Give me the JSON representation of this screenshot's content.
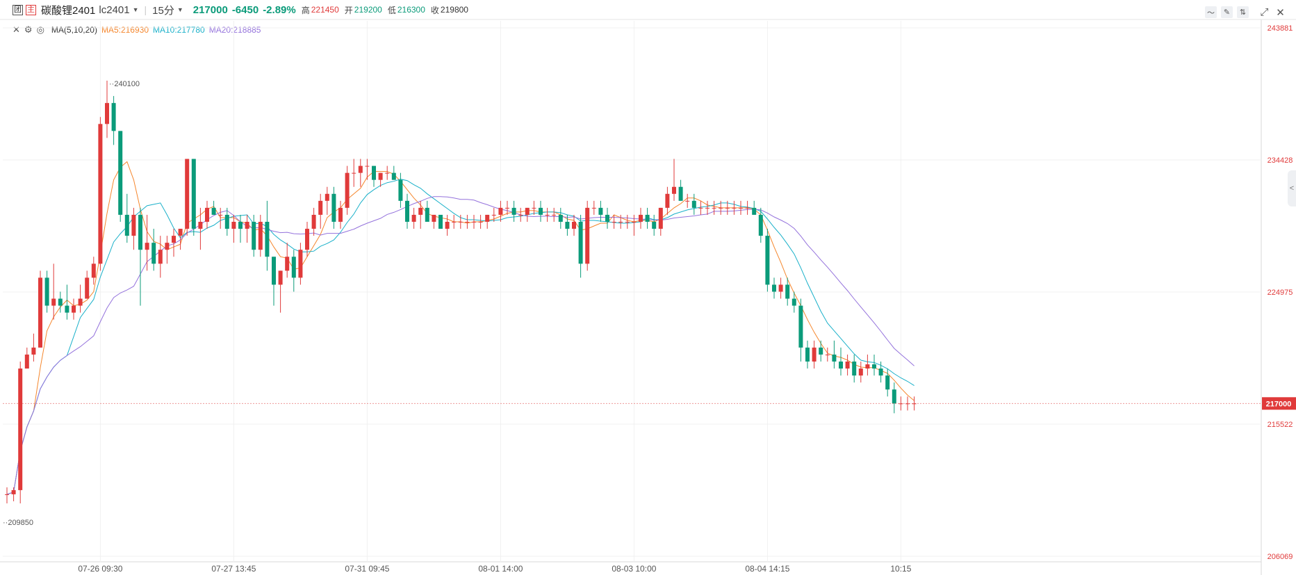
{
  "header": {
    "icon_left": "团",
    "icon_right": "主",
    "symbol_name": "碳酸锂2401",
    "symbol_code": "lc2401",
    "interval": "15分",
    "price": "217000",
    "change": "-6450",
    "change_pct": "-2.89%",
    "high_label": "高",
    "high": "221450",
    "open_label": "开",
    "open": "219200",
    "low_label": "低",
    "low": "216300",
    "close_label": "收",
    "close": "219800"
  },
  "legend": {
    "name": "MA(5,10,20)",
    "ma5": "MA5:216930",
    "ma10": "MA10:217780",
    "ma20": "MA20:218885"
  },
  "colors": {
    "up": "#e03a3a",
    "down": "#0b9b7a",
    "ma5": "#f5862c",
    "ma10": "#19b0c9",
    "ma20": "#9472dc"
  },
  "chart_data": {
    "type": "candlestick",
    "interval": "15分",
    "y_ticks": [
      206069,
      215522,
      224975,
      234428,
      243881
    ],
    "ylim": [
      206069,
      243881
    ],
    "x_ticks": [
      "07-26 09:30",
      "07-27 13:45",
      "07-31 09:45",
      "08-01 14:00",
      "08-03 10:00",
      "08-04 14:15",
      "10:15"
    ],
    "x_tick_index": [
      14,
      34,
      54,
      74,
      94,
      114,
      134
    ],
    "last_price": 217000,
    "max_label": "240100",
    "min_label": "209850",
    "candles": [
      [
        210500,
        211000,
        209850,
        210500
      ],
      [
        210500,
        211000,
        210000,
        210800
      ],
      [
        210800,
        220000,
        209850,
        219500
      ],
      [
        219500,
        221000,
        219500,
        220500
      ],
      [
        220500,
        222000,
        220000,
        221000
      ],
      [
        221000,
        226500,
        221000,
        226000
      ],
      [
        226000,
        226500,
        223500,
        224000
      ],
      [
        224000,
        227000,
        223000,
        224500
      ],
      [
        224500,
        225000,
        223500,
        224000
      ],
      [
        224000,
        225500,
        223000,
        223500
      ],
      [
        223500,
        224500,
        223000,
        224000
      ],
      [
        224000,
        225500,
        223500,
        224500
      ],
      [
        224500,
        226500,
        224500,
        226000
      ],
      [
        226000,
        227500,
        225500,
        227000
      ],
      [
        227000,
        237500,
        226500,
        237000
      ],
      [
        237000,
        240100,
        236000,
        238500
      ],
      [
        238500,
        239000,
        235500,
        236500
      ],
      [
        236500,
        236500,
        230000,
        230500
      ],
      [
        230500,
        232000,
        228500,
        229000
      ],
      [
        229000,
        231000,
        228000,
        230500
      ],
      [
        230500,
        231000,
        224000,
        228000
      ],
      [
        228000,
        230500,
        226500,
        228500
      ],
      [
        228500,
        229500,
        226500,
        227000
      ],
      [
        227000,
        229000,
        226000,
        228000
      ],
      [
        228000,
        229000,
        227000,
        228500
      ],
      [
        228500,
        229500,
        227500,
        229000
      ],
      [
        229000,
        229500,
        228000,
        229500
      ],
      [
        229500,
        234500,
        229000,
        234500
      ],
      [
        234500,
        234500,
        229000,
        229500
      ],
      [
        229500,
        231000,
        228000,
        230000
      ],
      [
        230000,
        231500,
        229500,
        231000
      ],
      [
        231000,
        231500,
        230500,
        230500
      ],
      [
        230500,
        231000,
        229500,
        230500
      ],
      [
        230500,
        231000,
        229000,
        229500
      ],
      [
        229500,
        230500,
        228500,
        230000
      ],
      [
        230000,
        230500,
        228500,
        229500
      ],
      [
        229500,
        230500,
        228500,
        230000
      ],
      [
        230000,
        230500,
        227500,
        228000
      ],
      [
        228000,
        230500,
        227500,
        230000
      ],
      [
        230000,
        231500,
        226500,
        227500
      ],
      [
        227500,
        227500,
        224000,
        225500
      ],
      [
        225500,
        226500,
        223500,
        226500
      ],
      [
        226500,
        228500,
        226000,
        227500
      ],
      [
        227500,
        228000,
        225000,
        226000
      ],
      [
        226000,
        228500,
        225500,
        228000
      ],
      [
        228000,
        230000,
        227500,
        229500
      ],
      [
        229500,
        231000,
        229000,
        230500
      ],
      [
        230500,
        232000,
        229500,
        231500
      ],
      [
        231500,
        232500,
        230500,
        232000
      ],
      [
        232000,
        232500,
        229500,
        230000
      ],
      [
        230000,
        231500,
        229500,
        231000
      ],
      [
        231000,
        234000,
        230500,
        233500
      ],
      [
        233500,
        234500,
        232500,
        233500
      ],
      [
        233500,
        234500,
        232500,
        234000
      ],
      [
        234000,
        234500,
        233000,
        234000
      ],
      [
        234000,
        234000,
        232500,
        233000
      ],
      [
        233000,
        233500,
        232500,
        233500
      ],
      [
        233500,
        234000,
        233000,
        233500
      ],
      [
        233500,
        234000,
        233000,
        233000
      ],
      [
        233000,
        233500,
        231000,
        231500
      ],
      [
        231500,
        232000,
        229500,
        230000
      ],
      [
        230000,
        231000,
        229500,
        230500
      ],
      [
        230500,
        231500,
        229500,
        231000
      ],
      [
        231000,
        231500,
        230000,
        230000
      ],
      [
        230000,
        230500,
        229500,
        230500
      ],
      [
        230500,
        230500,
        229500,
        229500
      ],
      [
        229500,
        230500,
        229000,
        230000
      ],
      [
        230000,
        230500,
        229500,
        230000
      ],
      [
        230000,
        230500,
        229500,
        230000
      ],
      [
        230000,
        230500,
        229500,
        230000
      ],
      [
        230000,
        230500,
        229500,
        230000
      ],
      [
        230000,
        230500,
        229500,
        230000
      ],
      [
        230000,
        230500,
        229500,
        230500
      ],
      [
        230500,
        231000,
        230000,
        230500
      ],
      [
        230500,
        231500,
        230000,
        231000
      ],
      [
        231000,
        231500,
        230500,
        231000
      ],
      [
        231000,
        231500,
        230000,
        230500
      ],
      [
        230500,
        231000,
        230000,
        230500
      ],
      [
        230500,
        231000,
        230000,
        231000
      ],
      [
        231000,
        231500,
        230500,
        231000
      ],
      [
        231000,
        231500,
        230000,
        230500
      ],
      [
        230500,
        231000,
        230000,
        230500
      ],
      [
        230500,
        231000,
        230000,
        230500
      ],
      [
        230500,
        231000,
        229500,
        230000
      ],
      [
        230000,
        230500,
        229000,
        229500
      ],
      [
        229500,
        230500,
        229000,
        230000
      ],
      [
        230000,
        230500,
        226000,
        227000
      ],
      [
        227000,
        231500,
        226500,
        231000
      ],
      [
        231000,
        231500,
        230500,
        231000
      ],
      [
        231000,
        231500,
        230000,
        230500
      ],
      [
        230500,
        231000,
        229500,
        230000
      ],
      [
        230000,
        230500,
        229500,
        230000
      ],
      [
        230000,
        230500,
        229500,
        230000
      ],
      [
        230000,
        230500,
        229500,
        230000
      ],
      [
        230000,
        230500,
        229000,
        230000
      ],
      [
        230000,
        231000,
        229500,
        230500
      ],
      [
        230500,
        231000,
        229500,
        230000
      ],
      [
        230000,
        230500,
        229000,
        229500
      ],
      [
        229500,
        231000,
        229000,
        231000
      ],
      [
        231000,
        232500,
        230500,
        232000
      ],
      [
        232000,
        234500,
        231500,
        232500
      ],
      [
        232500,
        233000,
        231500,
        231500
      ],
      [
        231500,
        232000,
        231000,
        231500
      ],
      [
        231500,
        232000,
        230500,
        231000
      ],
      [
        231000,
        231500,
        230500,
        231000
      ],
      [
        231000,
        231500,
        230500,
        231000
      ],
      [
        231000,
        231500,
        230500,
        231000
      ],
      [
        231000,
        231500,
        230500,
        231000
      ],
      [
        231000,
        231500,
        230500,
        231000
      ],
      [
        231000,
        231500,
        230500,
        231000
      ],
      [
        231000,
        231500,
        230500,
        231000
      ],
      [
        231000,
        231500,
        230500,
        231000
      ],
      [
        231000,
        231500,
        230500,
        230500
      ],
      [
        230500,
        231000,
        228500,
        229000
      ],
      [
        229000,
        229500,
        225000,
        225500
      ],
      [
        225500,
        226000,
        224500,
        225000
      ],
      [
        225000,
        226000,
        224500,
        225500
      ],
      [
        225500,
        226000,
        224000,
        224500
      ],
      [
        224500,
        225000,
        223500,
        224000
      ],
      [
        224000,
        224500,
        220000,
        221000
      ],
      [
        221000,
        221500,
        219500,
        220000
      ],
      [
        220000,
        221500,
        219500,
        221000
      ],
      [
        221000,
        221500,
        220000,
        220500
      ],
      [
        220500,
        221000,
        220000,
        220500
      ],
      [
        220500,
        221500,
        219500,
        220000
      ],
      [
        220000,
        221000,
        219000,
        219500
      ],
      [
        219500,
        220500,
        219000,
        220000
      ],
      [
        220000,
        220500,
        218500,
        219000
      ],
      [
        219000,
        220000,
        218500,
        219500
      ],
      [
        219500,
        220500,
        219000,
        219800
      ],
      [
        219800,
        220500,
        219000,
        219500
      ],
      [
        219500,
        220000,
        218500,
        219000
      ],
      [
        219000,
        219500,
        217500,
        218000
      ],
      [
        218000,
        218500,
        216300,
        217000
      ],
      [
        217000,
        217500,
        216500,
        217000
      ],
      [
        217000,
        217500,
        216500,
        217000
      ],
      [
        217000,
        217500,
        216500,
        217000
      ]
    ],
    "series": [
      {
        "name": "MA5",
        "value": "216930"
      },
      {
        "name": "MA10",
        "value": "217780"
      },
      {
        "name": "MA20",
        "value": "218885"
      }
    ],
    "grid": true
  }
}
